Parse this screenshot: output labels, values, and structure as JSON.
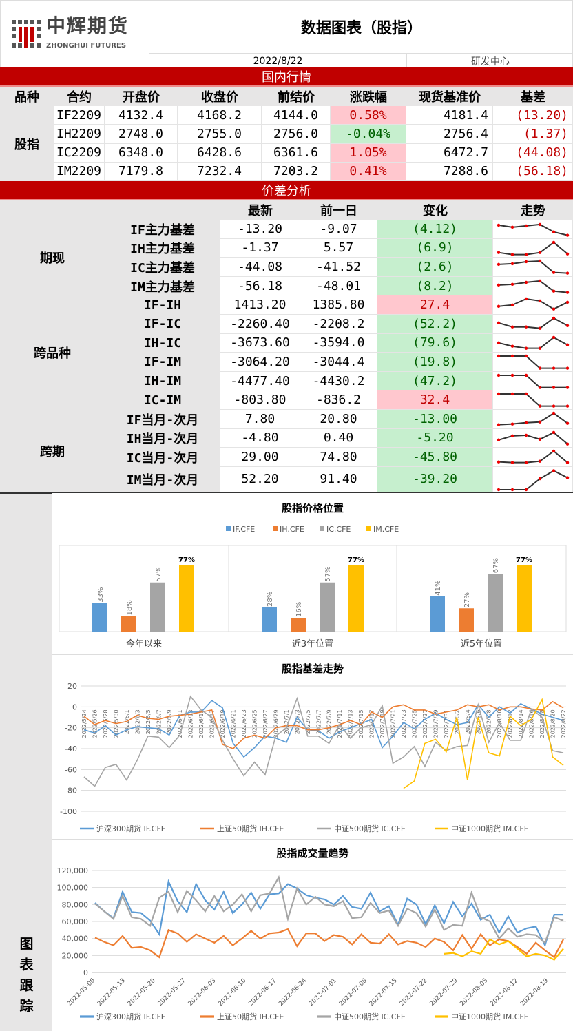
{
  "header": {
    "logo_cn": "中辉期货",
    "logo_en": "ZHONGHUI FUTURES",
    "title": "数据图表（股指）",
    "date": "2022/8/22",
    "dept": "研发中心"
  },
  "colors": {
    "banner": "#c00000",
    "up_bg": "#ffc7ce",
    "up_text": "#c00000",
    "down_bg": "#c6efce",
    "down_text": "#006100",
    "IF": "#5b9bd5",
    "IH": "#ed7d31",
    "IC": "#a5a5a5",
    "IM": "#ffc000"
  },
  "market": {
    "section": "国内行情",
    "columns": [
      "品种",
      "合约",
      "开盘价",
      "收盘价",
      "前结价",
      "涨跌幅",
      "现货基准价",
      "基差"
    ],
    "group": "股指",
    "rows": [
      {
        "contract": "IF2209",
        "open": "4132.4",
        "close": "4168.2",
        "settle": "4144.0",
        "chg": "0.58%",
        "dir": "up",
        "spot": "4181.4",
        "basis": "(13.20)"
      },
      {
        "contract": "IH2209",
        "open": "2748.0",
        "close": "2755.0",
        "settle": "2756.0",
        "chg": "-0.04%",
        "dir": "down",
        "spot": "2756.4",
        "basis": "(1.37)"
      },
      {
        "contract": "IC2209",
        "open": "6348.0",
        "close": "6428.6",
        "settle": "6361.6",
        "chg": "1.05%",
        "dir": "up",
        "spot": "6472.7",
        "basis": "(44.08)"
      },
      {
        "contract": "IM2209",
        "open": "7179.8",
        "close": "7232.4",
        "settle": "7203.2",
        "chg": "0.41%",
        "dir": "up",
        "spot": "7288.6",
        "basis": "(56.18)"
      }
    ]
  },
  "spread": {
    "section": "价差分析",
    "columns": [
      "最新",
      "前一日",
      "变化",
      "走势"
    ],
    "groups": [
      {
        "label": "期现",
        "span": 4
      },
      {
        "label": "跨品种",
        "span": 6
      },
      {
        "label": "跨期",
        "span": 4
      }
    ],
    "rows": [
      {
        "name": "IF主力基差",
        "latest": "-13.20",
        "prev": "-9.07",
        "chg": "(4.12)",
        "dir": "down",
        "trend": [
          0.8,
          0.65,
          0.75,
          0.85,
          0.3,
          0.05
        ]
      },
      {
        "name": "IH主力基差",
        "latest": "-1.37",
        "prev": "5.57",
        "chg": "(6.9)",
        "dir": "down",
        "trend": [
          0.2,
          0.05,
          0.05,
          0.2,
          0.95,
          0.1
        ]
      },
      {
        "name": "IC主力基差",
        "latest": "-44.08",
        "prev": "-41.52",
        "chg": "(2.6)",
        "dir": "down",
        "trend": [
          0.7,
          0.75,
          0.9,
          0.95,
          0.1,
          0.05
        ]
      },
      {
        "name": "IM主力基差",
        "latest": "-56.18",
        "prev": "-48.01",
        "chg": "(8.2)",
        "dir": "down",
        "trend": [
          0.6,
          0.65,
          0.8,
          0.9,
          0.15,
          0.05
        ]
      },
      {
        "name": "IF-IH",
        "latest": "1413.20",
        "prev": "1385.80",
        "chg": "27.4",
        "dir": "up",
        "trend": [
          0.4,
          0.5,
          0.95,
          0.8,
          0.2,
          0.7
        ]
      },
      {
        "name": "IF-IC",
        "latest": "-2260.40",
        "prev": "-2208.2",
        "chg": "(52.2)",
        "dir": "down",
        "trend": [
          0.6,
          0.3,
          0.3,
          0.2,
          0.95,
          0.4
        ]
      },
      {
        "name": "IH-IC",
        "latest": "-3673.60",
        "prev": "-3594.0",
        "chg": "(79.6)",
        "dir": "down",
        "trend": [
          0.55,
          0.3,
          0.15,
          0.15,
          0.95,
          0.4
        ]
      },
      {
        "name": "IF-IM",
        "latest": "-3064.20",
        "prev": "-3044.4",
        "chg": "(19.8)",
        "dir": "down",
        "trend": [
          0.95,
          0.95,
          0.95,
          0.05,
          0.05,
          0.05
        ]
      },
      {
        "name": "IH-IM",
        "latest": "-4477.40",
        "prev": "-4430.2",
        "chg": "(47.2)",
        "dir": "down",
        "trend": [
          0.95,
          0.95,
          0.95,
          0.05,
          0.05,
          0.05
        ]
      },
      {
        "name": "IC-IM",
        "latest": "-803.80",
        "prev": "-836.2",
        "chg": "32.4",
        "dir": "up",
        "trend": [
          0.95,
          0.95,
          0.95,
          0.05,
          0.05,
          0.05
        ]
      },
      {
        "name": "IF当月-次月",
        "latest": "7.80",
        "prev": "20.80",
        "chg": "-13.00",
        "dir": "down",
        "trend": [
          0.1,
          0.15,
          0.25,
          0.3,
          0.95,
          0.2
        ]
      },
      {
        "name": "IH当月-次月",
        "latest": "-4.80",
        "prev": "0.40",
        "chg": "-5.20",
        "dir": "down",
        "trend": [
          0.4,
          0.7,
          0.75,
          0.45,
          0.95,
          0.1
        ]
      },
      {
        "name": "IC当月-次月",
        "latest": "29.00",
        "prev": "74.80",
        "chg": "-45.80",
        "dir": "down",
        "trend": [
          0.15,
          0.1,
          0.1,
          0.2,
          0.95,
          0.1
        ]
      },
      {
        "name": "IM当月-次月",
        "latest": "52.20",
        "prev": "91.40",
        "chg": "-39.20",
        "dir": "down",
        "trend": [
          0,
          0,
          0,
          0.55,
          0.95,
          0.6
        ]
      }
    ]
  },
  "charts_label": "图表跟踪",
  "chart_data": [
    {
      "type": "bar",
      "title": "股指价格位置",
      "categories": [
        "今年以来",
        "近3年位置",
        "近5年位置"
      ],
      "series": [
        {
          "name": "IF.CFE",
          "values": [
            33,
            28,
            41
          ]
        },
        {
          "name": "IH.CFE",
          "values": [
            18,
            16,
            27
          ]
        },
        {
          "name": "IC.CFE",
          "values": [
            57,
            57,
            67
          ]
        },
        {
          "name": "IM.CFE",
          "values": [
            77,
            77,
            77
          ]
        }
      ],
      "unit": "%",
      "ylim": [
        0,
        100
      ],
      "legend": "top"
    },
    {
      "type": "line",
      "title": "股指基差走势",
      "ylim": [
        -100,
        20
      ],
      "yticks": [
        20,
        0,
        -20,
        -40,
        -60,
        -80,
        -100
      ],
      "grid": true,
      "legend": "bottom",
      "x": [
        "2022/5/24",
        "2022/5/26",
        "2022/5/28",
        "2022/5/30",
        "2022/6/1",
        "2022/6/3",
        "2022/6/5",
        "2022/6/7",
        "2022/6/9",
        "2022/6/11",
        "2022/6/13",
        "2022/6/15",
        "2022/6/17",
        "2022/6/19",
        "2022/6/21",
        "2022/6/23",
        "2022/6/25",
        "2022/6/27",
        "2022/6/29",
        "2022/7/1",
        "2022/7/3",
        "2022/7/5",
        "2022/7/7",
        "2022/7/9",
        "2022/7/11",
        "2022/7/13",
        "2022/7/15",
        "2022/7/17",
        "2022/7/19",
        "2022/7/21",
        "2022/7/23",
        "2022/7/25",
        "2022/7/27",
        "2022/7/29",
        "2022/7/31",
        "2022/8/2",
        "2022/8/4",
        "2022/8/6",
        "2022/8/8",
        "2022/8/10",
        "2022/8/12",
        "2022/8/14",
        "2022/8/16",
        "2022/8/18",
        "2022/8/20",
        "2022/8/22"
      ],
      "series": [
        {
          "name": "沪深300期货 IF.CFE",
          "values": [
            -22,
            -25,
            -18,
            -27,
            -22,
            -19,
            -20,
            -21,
            -27,
            -8,
            -5,
            -5,
            6,
            -1,
            -35,
            -48,
            -39,
            -28,
            -30,
            -34,
            -10,
            -22,
            -23,
            -30,
            -24,
            -20,
            -16,
            -12,
            -39,
            -28,
            -15,
            -21,
            -12,
            -6,
            -12,
            -17,
            -15,
            2,
            -10,
            0,
            -6,
            3,
            -2,
            -7,
            -10,
            -13
          ]
        },
        {
          "name": "上证50期货 IH.CFE",
          "values": [
            -9,
            -17,
            -13,
            -16,
            -14,
            -8,
            -11,
            -12,
            -9,
            -8,
            -7,
            -5,
            -3,
            -36,
            -40,
            -30,
            -27,
            -30,
            -20,
            -18,
            -18,
            -22,
            -22,
            -20,
            -17,
            -13,
            -17,
            -5,
            -10,
            0,
            2,
            -3,
            -3,
            -7,
            -5,
            -3,
            2,
            0,
            2,
            -3,
            0,
            0,
            -2,
            -3,
            5,
            -1
          ]
        },
        {
          "name": "中证500期货 IC.CFE",
          "values": [
            -67,
            -76,
            -58,
            -55,
            -70,
            -51,
            -28,
            -29,
            -39,
            -27,
            10,
            -3,
            -10,
            -32,
            -50,
            -66,
            -53,
            -65,
            -28,
            -20,
            8,
            -28,
            -28,
            -35,
            -17,
            -30,
            -20,
            -17,
            1,
            -54,
            -48,
            -38,
            -57,
            -34,
            -42,
            -38,
            -37,
            2,
            -34,
            -15,
            -32,
            -32,
            -2,
            -10,
            -42,
            -44
          ]
        },
        {
          "name": "中证1000期货 IM.CFE",
          "values": [
            null,
            null,
            null,
            null,
            null,
            null,
            null,
            null,
            null,
            null,
            null,
            null,
            null,
            null,
            null,
            null,
            null,
            null,
            null,
            null,
            null,
            null,
            null,
            null,
            null,
            null,
            null,
            null,
            null,
            null,
            -78,
            -71,
            -35,
            -31,
            -43,
            -10,
            -70,
            -10,
            -44,
            -47,
            -9,
            -18,
            -12,
            7,
            -48,
            -56
          ]
        }
      ]
    },
    {
      "type": "line",
      "title": "股指成交量趋势",
      "ylim": [
        0,
        120000
      ],
      "yticks": [
        "120,000",
        "100,000",
        "80,000",
        "60,000",
        "40,000",
        "20,000",
        "0"
      ],
      "grid": true,
      "legend": "bottom",
      "xticks": [
        "2022-05-06",
        "2022-05-13",
        "2022-05-20",
        "2022-05-27",
        "2022-06-03",
        "2022-06-10",
        "2022-06-17",
        "2022-06-24",
        "2022-07-01",
        "2022-07-08",
        "2022-07-15",
        "2022-07-22",
        "2022-07-29",
        "2022-08-05",
        "2022-08-12",
        "2022-08-19"
      ],
      "series": [
        {
          "name": "沪深300期货 IF.CFE",
          "values": [
            82000,
            72000,
            64000,
            95000,
            71000,
            70000,
            61000,
            45000,
            107000,
            84000,
            71000,
            104000,
            85000,
            74000,
            95000,
            70000,
            80000,
            94000,
            75000,
            92000,
            93000,
            104000,
            99000,
            91000,
            88000,
            86000,
            80000,
            90000,
            77000,
            75000,
            94000,
            72000,
            78000,
            56000,
            87000,
            80000,
            57000,
            79000,
            58000,
            83000,
            66000,
            81000,
            62000,
            68000,
            47000,
            66000,
            47000,
            52000,
            54000,
            32000,
            68000,
            68000
          ]
        },
        {
          "name": "上证50期货 IH.CFE",
          "values": [
            41000,
            36000,
            32000,
            43000,
            29000,
            30000,
            26000,
            18000,
            50000,
            46000,
            36000,
            45000,
            40000,
            35000,
            43000,
            32000,
            40000,
            49000,
            40000,
            46000,
            47000,
            51000,
            31000,
            46000,
            46000,
            37000,
            44000,
            42000,
            33000,
            45000,
            35000,
            34000,
            45000,
            33000,
            37000,
            35000,
            30000,
            40000,
            36000,
            26000,
            44000,
            28000,
            45000,
            32000,
            39000,
            37000,
            30000,
            22000,
            35000,
            26000,
            18000,
            39000
          ]
        },
        {
          "name": "中证500期货 IC.CFE",
          "values": [
            81000,
            72000,
            63000,
            90000,
            65000,
            63000,
            55000,
            88000,
            95000,
            71000,
            96000,
            85000,
            72000,
            90000,
            72000,
            80000,
            92000,
            72000,
            91000,
            93000,
            112000,
            63000,
            99000,
            80000,
            89000,
            80000,
            78000,
            84000,
            64000,
            65000,
            82000,
            70000,
            73000,
            55000,
            75000,
            70000,
            54000,
            74000,
            50000,
            56000,
            55000,
            94000,
            65000,
            60000,
            40000,
            52000,
            42000,
            45000,
            44000,
            35000,
            65000,
            61000
          ]
        },
        {
          "name": "中证1000期货 IM.CFE",
          "values": [
            null,
            null,
            null,
            null,
            null,
            null,
            null,
            null,
            null,
            null,
            null,
            null,
            null,
            null,
            null,
            null,
            null,
            null,
            null,
            null,
            null,
            null,
            null,
            null,
            null,
            null,
            null,
            null,
            null,
            null,
            null,
            null,
            null,
            null,
            null,
            null,
            null,
            null,
            22000,
            23000,
            19000,
            25000,
            22000,
            39000,
            33000,
            37000,
            28000,
            19000,
            22000,
            20000,
            15000,
            28000
          ]
        }
      ]
    }
  ]
}
